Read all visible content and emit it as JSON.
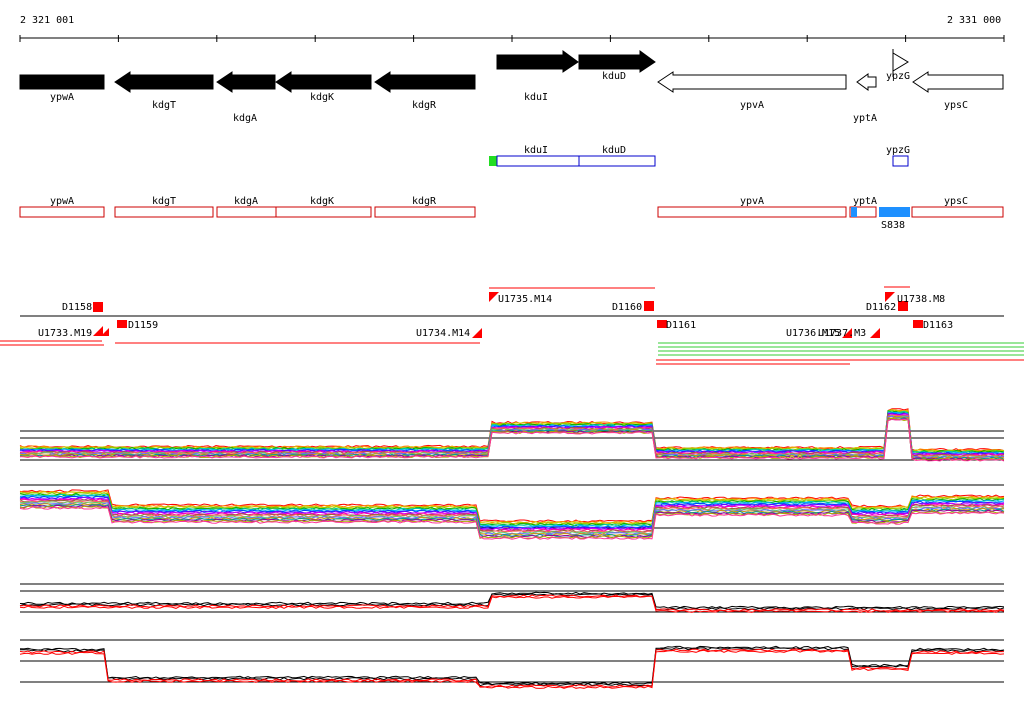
{
  "ruler": {
    "left_label": "2 321 001",
    "right_label": "2 331 000"
  },
  "genes_top": [
    {
      "label": "ypwA",
      "strand": "-",
      "fill": "black"
    },
    {
      "label": "kdgT",
      "strand": "-",
      "fill": "black"
    },
    {
      "label": "kdgA",
      "strand": "-",
      "fill": "black"
    },
    {
      "label": "kdgK",
      "strand": "-",
      "fill": "black"
    },
    {
      "label": "kdgR",
      "strand": "-",
      "fill": "black"
    },
    {
      "label": "kduI",
      "strand": "+",
      "fill": "black"
    },
    {
      "label": "kduD",
      "strand": "+",
      "fill": "black"
    },
    {
      "label": "ypvA",
      "strand": "-",
      "fill": "white"
    },
    {
      "label": "yptA",
      "strand": "-",
      "fill": "white"
    },
    {
      "label": "ypzG",
      "strand": "+",
      "fill": "white"
    },
    {
      "label": "ypsC",
      "strand": "-",
      "fill": "white"
    }
  ],
  "blue_track": [
    {
      "label": "kduI"
    },
    {
      "label": "kduD"
    },
    {
      "label": "ypzG"
    }
  ],
  "red_track": [
    {
      "label": "ypwA"
    },
    {
      "label": "kdgT"
    },
    {
      "label": "kdgA"
    },
    {
      "label": "kdgK"
    },
    {
      "label": "kdgR"
    },
    {
      "label": "ypvA"
    },
    {
      "label": "yptA"
    },
    {
      "label": "ypsC"
    }
  ],
  "feature_labels": {
    "s_label": "S838"
  },
  "transcript_labels": [
    {
      "label": "D1158"
    },
    {
      "label": "U1733.M19"
    },
    {
      "label": "D1159"
    },
    {
      "label": "U1734.M14"
    },
    {
      "label": "U1735.M14"
    },
    {
      "label": "D1160"
    },
    {
      "label": "D1161"
    },
    {
      "label": "U1736.M15"
    },
    {
      "label": "U1737.M3"
    },
    {
      "label": "D1162"
    },
    {
      "label": "U1738.M8"
    },
    {
      "label": "D1163"
    }
  ],
  "colors": {
    "gene_black": "#000000",
    "blue_box": "#0000cc",
    "red_box": "#cc0000",
    "accent_red": "#ff0000",
    "green_start": "#22dd22",
    "cyan_feature": "#1e90ff",
    "green_lines": "#33cc33"
  }
}
